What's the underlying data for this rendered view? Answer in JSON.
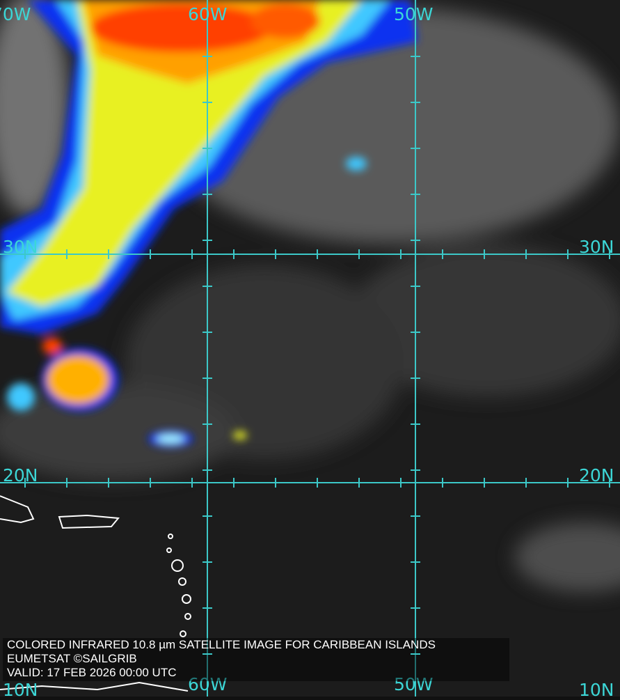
{
  "longitude_labels_top": [
    "70W",
    "60W",
    "50W"
  ],
  "longitude_labels_bottom": [
    "60W",
    "50W"
  ],
  "latitude_labels_left": [
    "30N",
    "20N",
    "10N"
  ],
  "latitude_labels_right": [
    "30N",
    "20N",
    "10N"
  ],
  "caption": {
    "line1": "COLORED INFRARED 10.8 µm SATELLITE IMAGE FOR CARIBBEAN ISLANDS",
    "line2": "EUMETSAT ©SAILGRIB",
    "line3": "VALID:  17 FEB 2026 00:00 UTC"
  },
  "colors": {
    "grid": "#3cc8c8",
    "cold_cloud_top": "#ff3000",
    "mid_cloud": "#f0f000",
    "low_cloud": "#0030ff",
    "background": "#1a1a1a"
  }
}
